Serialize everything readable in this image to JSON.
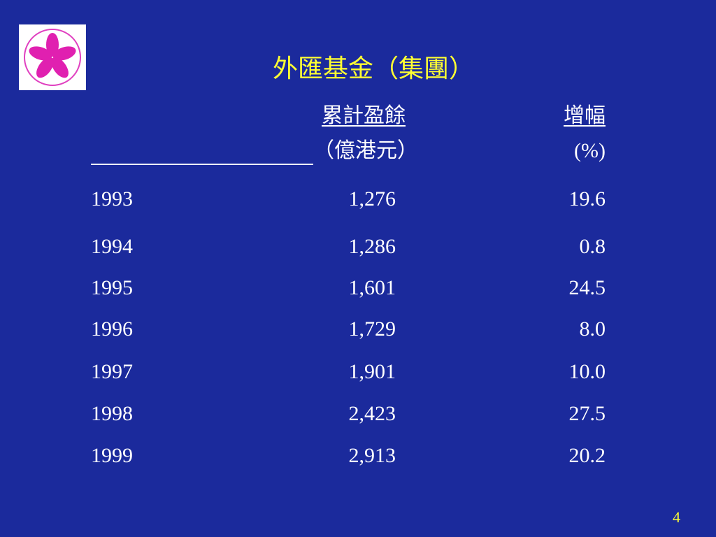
{
  "slide": {
    "title": "外匯基金（集團）",
    "table": {
      "header": {
        "surplus": [
          "累計盈餘",
          "（億港元）"
        ],
        "growth": [
          "增幅",
          "(%)"
        ]
      },
      "rows": [
        [
          "1993",
          "1,276",
          "19.6"
        ],
        [
          "1994",
          "1,286",
          "0.8"
        ],
        [
          "1995",
          "1,601",
          "24.5"
        ],
        [
          "1996",
          "1,729",
          "8.0"
        ],
        [
          "1997",
          "1,901",
          "10.0"
        ],
        [
          "1998",
          "2,423",
          "27.5"
        ],
        [
          "1999",
          "2,913",
          "20.2"
        ]
      ]
    },
    "page_number": "4"
  }
}
